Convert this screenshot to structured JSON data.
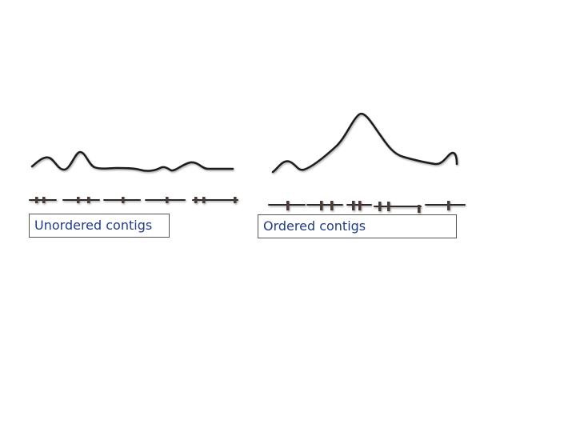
{
  "labels": {
    "unordered": "Unordered contigs",
    "ordered": "Ordered contigs"
  },
  "colors": {
    "curve": "#1a1a1a",
    "contig_line": "#2a2a2a",
    "marker": "#4a3a36",
    "label_text": "#1f3b8c",
    "box_border": "#555555"
  }
}
